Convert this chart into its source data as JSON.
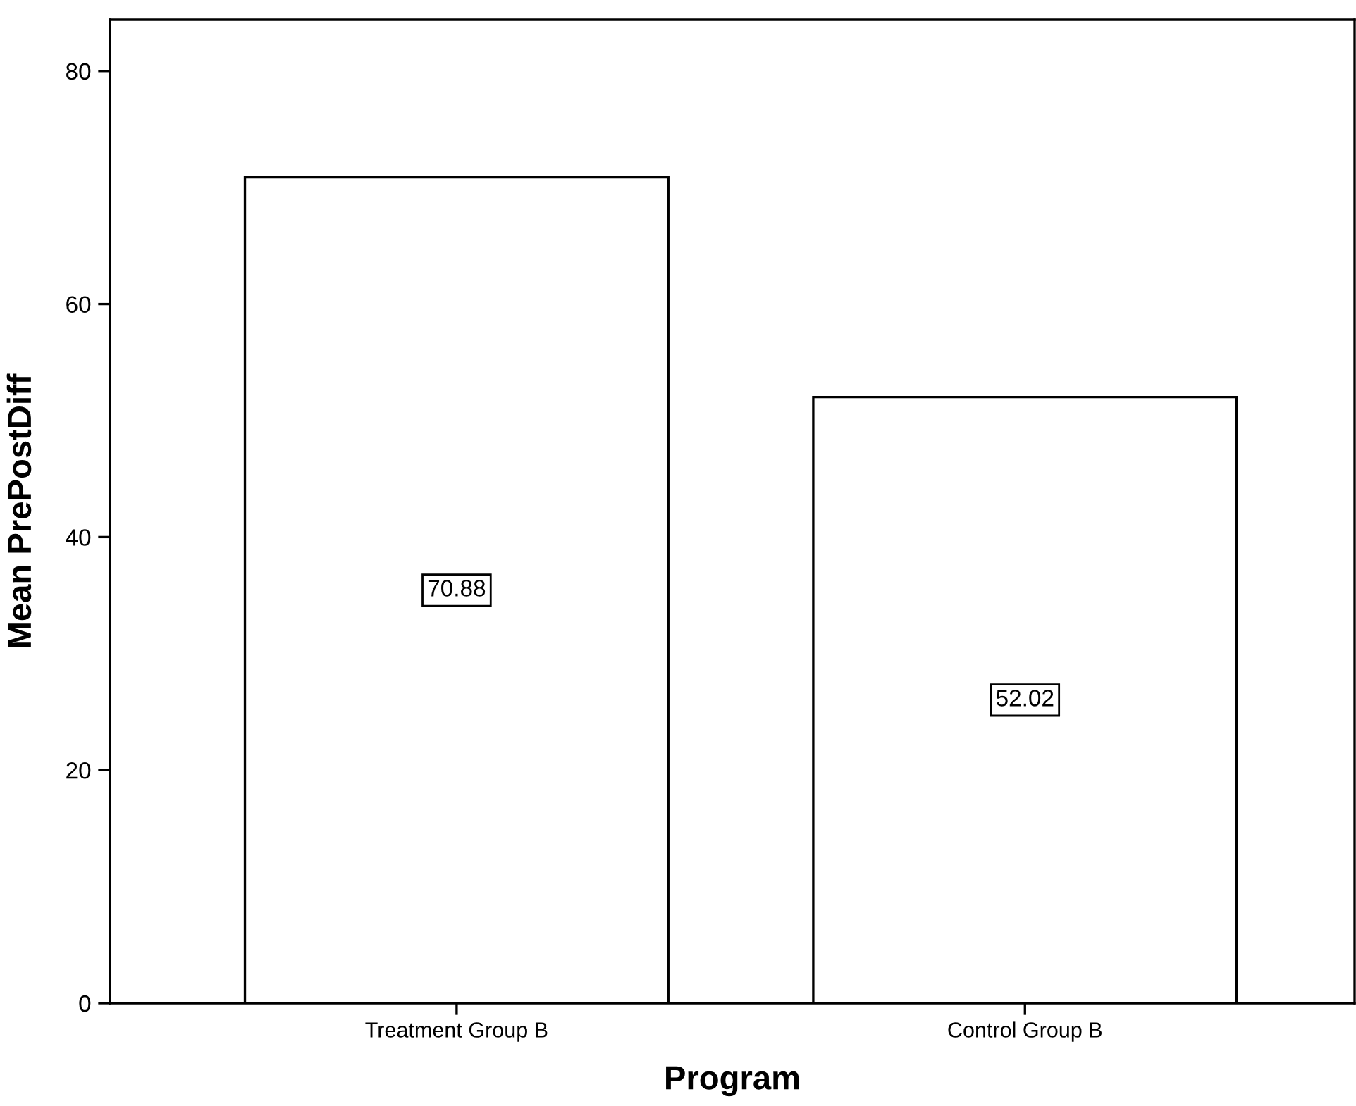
{
  "chart_data": {
    "type": "bar",
    "xlabel": "Program",
    "ylabel": "Mean PrePostDiff",
    "categories": [
      "Treatment Group B",
      "Control Group B"
    ],
    "values": [
      70.88,
      52.02
    ],
    "color": "#ffffff",
    "ylim": [
      0,
      84.4
    ],
    "yticks": [
      0,
      20,
      40,
      60,
      80
    ],
    "grid": false,
    "data_labels": true
  }
}
